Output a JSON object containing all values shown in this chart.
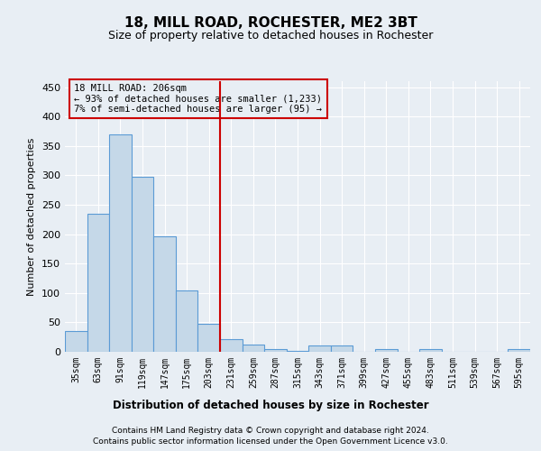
{
  "title1": "18, MILL ROAD, ROCHESTER, ME2 3BT",
  "title2": "Size of property relative to detached houses in Rochester",
  "xlabel": "Distribution of detached houses by size in Rochester",
  "ylabel": "Number of detached properties",
  "categories": [
    "35sqm",
    "63sqm",
    "91sqm",
    "119sqm",
    "147sqm",
    "175sqm",
    "203sqm",
    "231sqm",
    "259sqm",
    "287sqm",
    "315sqm",
    "343sqm",
    "371sqm",
    "399sqm",
    "427sqm",
    "455sqm",
    "483sqm",
    "511sqm",
    "539sqm",
    "567sqm",
    "595sqm"
  ],
  "values": [
    35,
    235,
    370,
    298,
    197,
    105,
    47,
    21,
    12,
    5,
    2,
    10,
    10,
    0,
    4,
    0,
    4,
    0,
    0,
    0,
    4
  ],
  "bar_color": "#c5d8e8",
  "bar_edge_color": "#5b9bd5",
  "bg_color": "#e8eef4",
  "grid_color": "#ffffff",
  "vline_position": 6.5,
  "vline_color": "#cc0000",
  "annotation_text": "18 MILL ROAD: 206sqm\n← 93% of detached houses are smaller (1,233)\n7% of semi-detached houses are larger (95) →",
  "annotation_box_color": "#cc0000",
  "footer1": "Contains HM Land Registry data © Crown copyright and database right 2024.",
  "footer2": "Contains public sector information licensed under the Open Government Licence v3.0.",
  "ylim": [
    0,
    460
  ],
  "yticks": [
    0,
    50,
    100,
    150,
    200,
    250,
    300,
    350,
    400,
    450
  ]
}
